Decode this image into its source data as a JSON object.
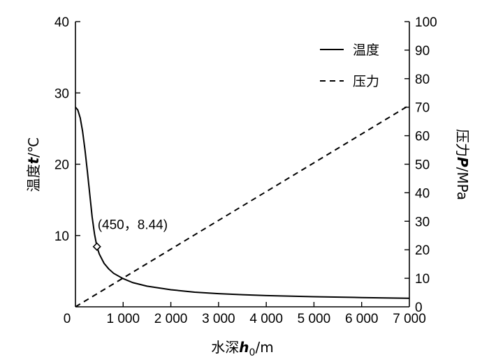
{
  "chart_data": {
    "type": "line",
    "x_axis": {
      "label_main": "水深",
      "label_var": "h",
      "label_sub": "0",
      "label_unit": "/m",
      "range": [
        0,
        7000
      ],
      "ticks": [
        0,
        1000,
        2000,
        3000,
        4000,
        5000,
        6000,
        7000
      ],
      "tick_labels": [
        "0",
        "1 000",
        "2 000",
        "3 000",
        "4 000",
        "5 000",
        "6 000",
        "7 000"
      ]
    },
    "y_left": {
      "label_main": "温度",
      "label_var": "t",
      "label_unit": "/℃",
      "range": [
        0,
        40
      ],
      "ticks": [
        10,
        20,
        30,
        40
      ],
      "tick_labels": [
        "10",
        "20",
        "30",
        "40"
      ]
    },
    "y_right": {
      "label_main": "压力",
      "label_var": "P",
      "label_unit": "/MPa",
      "range": [
        0,
        100
      ],
      "ticks": [
        0,
        10,
        20,
        30,
        40,
        50,
        60,
        70,
        80,
        90,
        100
      ],
      "tick_labels": [
        "0",
        "10",
        "20",
        "30",
        "40",
        "50",
        "60",
        "70",
        "80",
        "90",
        "100"
      ]
    },
    "series": [
      {
        "name": "温度",
        "axis": "left",
        "style": "solid",
        "x": [
          0,
          50,
          100,
          150,
          200,
          250,
          300,
          350,
          400,
          450,
          500,
          600,
          700,
          800,
          1000,
          1200,
          1500,
          2000,
          2500,
          3000,
          3500,
          4000,
          5000,
          6000,
          7000
        ],
        "y": [
          28,
          27.6,
          26.5,
          24.6,
          22,
          19,
          15.8,
          12.6,
          10.2,
          8.44,
          7.4,
          6.1,
          5.3,
          4.7,
          3.95,
          3.4,
          2.9,
          2.4,
          2.05,
          1.85,
          1.7,
          1.58,
          1.42,
          1.3,
          1.2
        ]
      },
      {
        "name": "压力",
        "axis": "right",
        "style": "dashed",
        "x": [
          0,
          7000
        ],
        "y": [
          0,
          70.7
        ]
      }
    ],
    "annotation": {
      "text": "(450，8.44)",
      "x": 450,
      "y": 8.44,
      "marker": "diamond"
    },
    "legend": {
      "placement": "top-right",
      "entries": [
        "温度",
        "压力"
      ]
    },
    "grid": false
  }
}
